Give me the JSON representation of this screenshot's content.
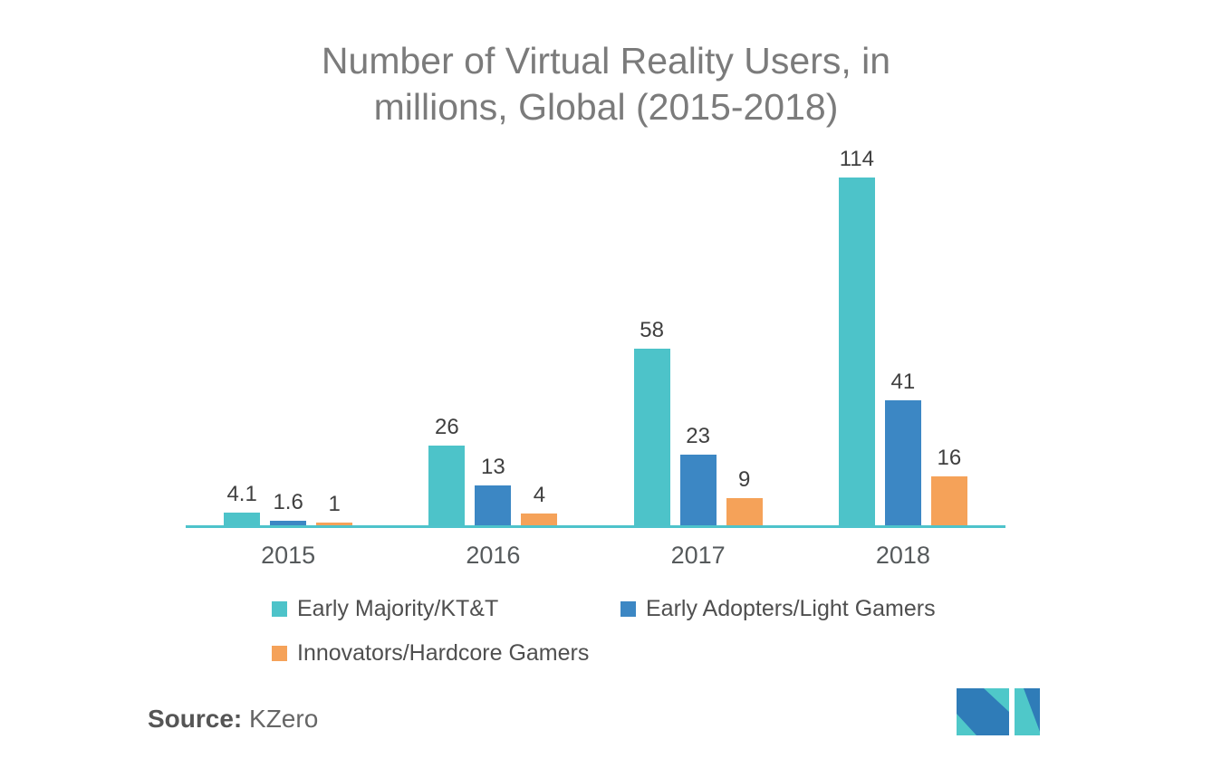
{
  "title": {
    "line1": "Number of Virtual Reality Users, in",
    "line2": "millions, Global (2015-2018)"
  },
  "chart_data": {
    "type": "bar",
    "title": "Number of Virtual Reality Users, in millions, Global (2015-2018)",
    "categories": [
      "2015",
      "2016",
      "2017",
      "2018"
    ],
    "series": [
      {
        "name": "Early Majority/KT&T",
        "color": "#4dc3c9",
        "values": [
          4.1,
          26,
          58,
          114
        ]
      },
      {
        "name": "Early Adopters/Light Gamers",
        "color": "#3c87c4",
        "values": [
          1.6,
          13,
          23,
          41
        ]
      },
      {
        "name": "Innovators/Hardcore Gamers",
        "color": "#f5a259",
        "values": [
          1,
          4,
          9,
          16
        ]
      }
    ],
    "value_labels": [
      [
        "4.1",
        "1.6",
        "1"
      ],
      [
        "26",
        "13",
        "4"
      ],
      [
        "58",
        "23",
        "9"
      ],
      [
        "114",
        "41",
        "16"
      ]
    ],
    "xlabel": "",
    "ylabel": "",
    "ylim": [
      0,
      120
    ],
    "grid": false,
    "axis_color": "#4ec3cb",
    "legend_position": "bottom"
  },
  "legend": {
    "items": [
      {
        "label": "Early Majority/KT&T",
        "color": "#4dc3c9"
      },
      {
        "label": "Early Adopters/Light Gamers",
        "color": "#3c87c4"
      },
      {
        "label": "Innovators/Hardcore Gamers",
        "color": "#f5a259"
      }
    ]
  },
  "source": {
    "label": "Source:",
    "value": "KZero"
  },
  "logo": {
    "name": "mordor-intelligence-logo",
    "teal": "#4fc8c9",
    "blue": "#2f7cb8"
  }
}
